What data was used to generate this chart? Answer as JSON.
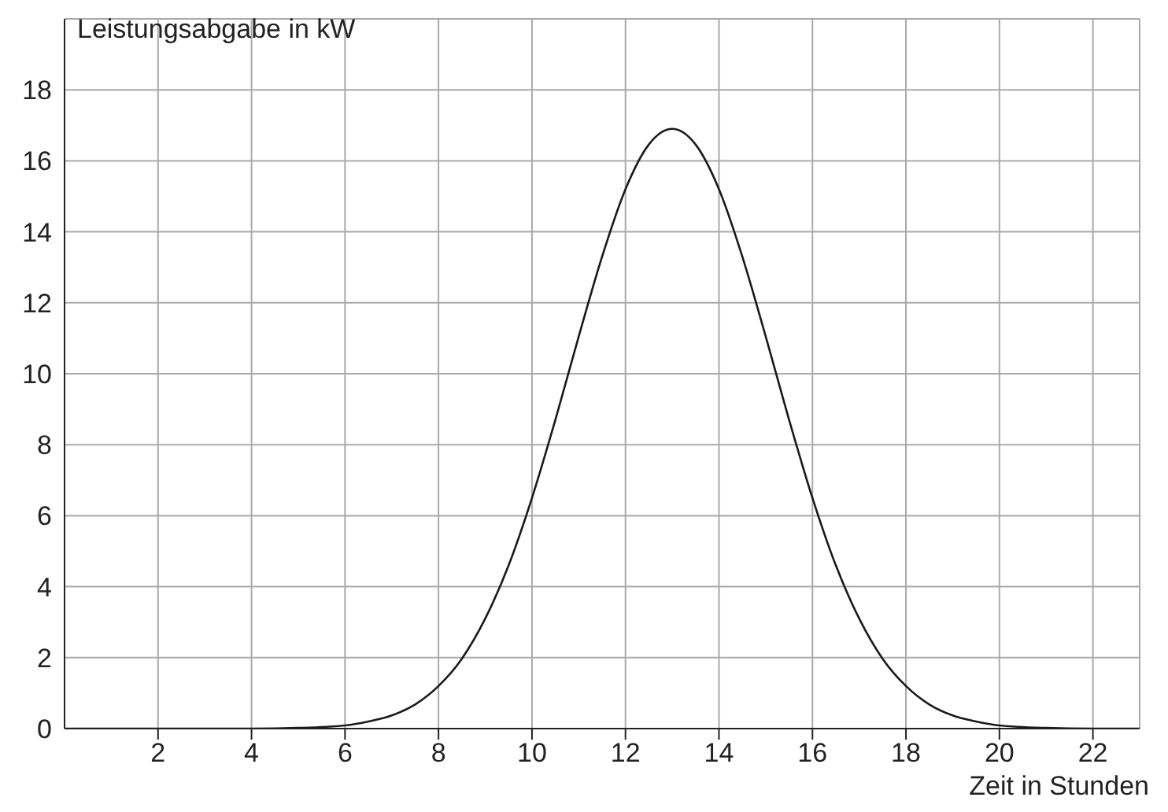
{
  "chart_data": {
    "type": "line",
    "xlabel": "Zeit in Stunden",
    "ylabel": "Leistungsabgabe in kW",
    "x": [
      0,
      2,
      4,
      5,
      6,
      6.5,
      7,
      7.5,
      8,
      8.5,
      9,
      9.5,
      10,
      10.5,
      11,
      11.5,
      12,
      12.5,
      13,
      13.5,
      14,
      14.5,
      15,
      15.5,
      16,
      16.5,
      17,
      17.5,
      18,
      18.5,
      19,
      19.5,
      20,
      21,
      22,
      23
    ],
    "series": [
      {
        "color": "#1a1a1a",
        "values": [
          0,
          0,
          0,
          0.02,
          0.09,
          0.2,
          0.37,
          0.68,
          1.2,
          1.97,
          3.1,
          4.6,
          6.5,
          8.7,
          11.05,
          13.3,
          15.2,
          16.46,
          16.9,
          16.46,
          15.2,
          13.3,
          11.05,
          8.7,
          6.5,
          4.6,
          3.1,
          1.97,
          1.2,
          0.68,
          0.37,
          0.2,
          0.09,
          0.02,
          0,
          0
        ]
      }
    ],
    "xlim": [
      0,
      23
    ],
    "ylim": [
      0,
      20
    ],
    "xticks": [
      2,
      4,
      6,
      8,
      10,
      12,
      14,
      16,
      18,
      20,
      22
    ],
    "yticks": [
      0,
      2,
      4,
      6,
      8,
      10,
      12,
      14,
      16,
      18
    ],
    "grid": true,
    "legend": false,
    "marker": "none",
    "line_style": "solid"
  }
}
